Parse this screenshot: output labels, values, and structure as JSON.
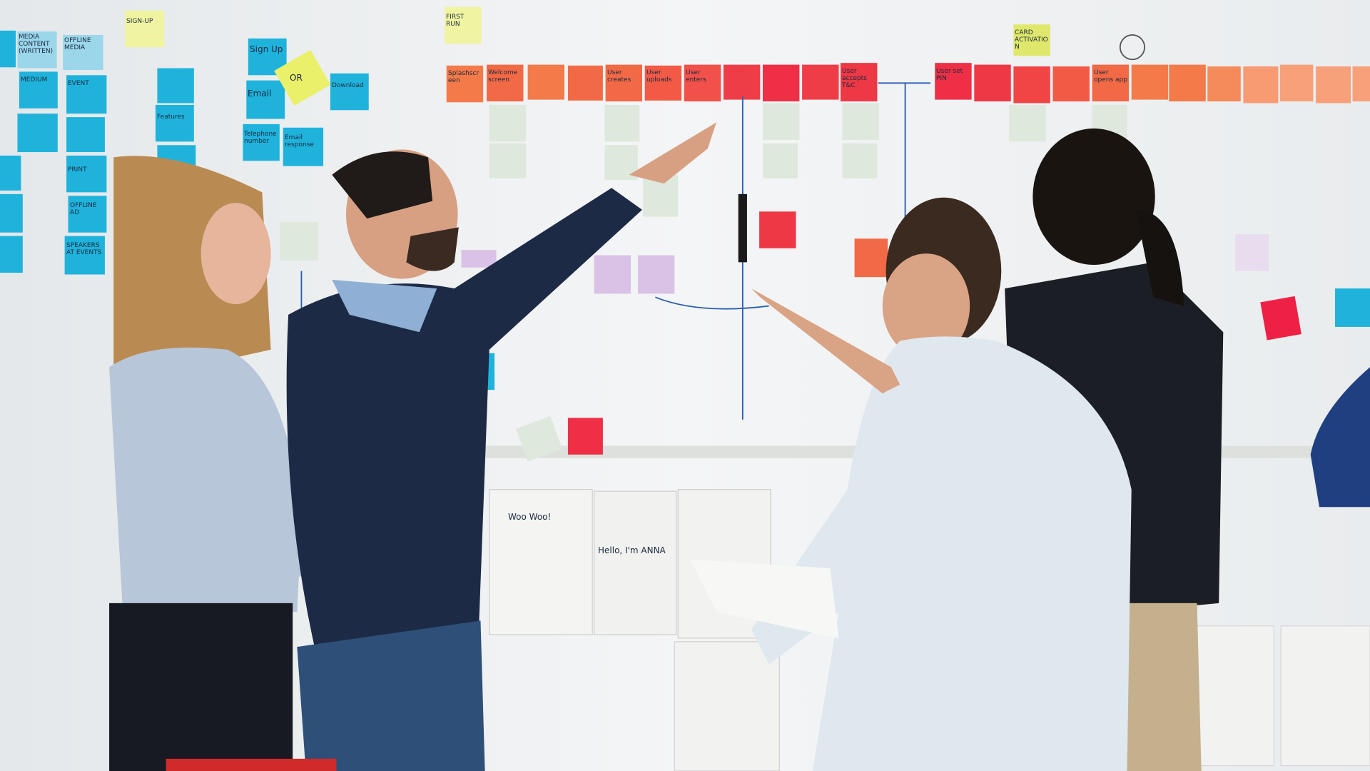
{
  "scene": "Team planning session at a whiteboard covered in sticky notes",
  "colors": {
    "wall": "#eef0f1",
    "blue_note": "#1fb3dc",
    "orange_note": "#f26a45",
    "red_note": "#ef2f45",
    "green_note": "#dfe8dc",
    "yellow_note": "#e8f06a",
    "purple_note": "#d9c2e6",
    "navy_sweater": "#1c2a45",
    "light_shirt": "#dfe8ef",
    "black_shirt": "#1b1e24"
  },
  "notes": {
    "blue": [
      "MEDIA CONTENT (WRITTEN)",
      "OFFLINE MEDIA",
      "MEDIUM",
      "EVENT",
      "Sign Up",
      "Email",
      "Download",
      "Features",
      "Telephone number",
      "Email response",
      "PRINT",
      "OFFLINE AD",
      "SPEAKERS AT EVENTS"
    ],
    "yellow": [
      "SIGN-UP",
      "FIRST RUN",
      "OR",
      "CARD ACTIVATION"
    ],
    "orange": [
      "Splashscreen",
      "Welcome screen",
      "User creates",
      "User uploads",
      "User enters",
      "User accepts T&C",
      "User set PIN",
      "User opens app"
    ],
    "sketches": [
      "Woo Woo!",
      "Hello, I'm ANNA"
    ]
  }
}
